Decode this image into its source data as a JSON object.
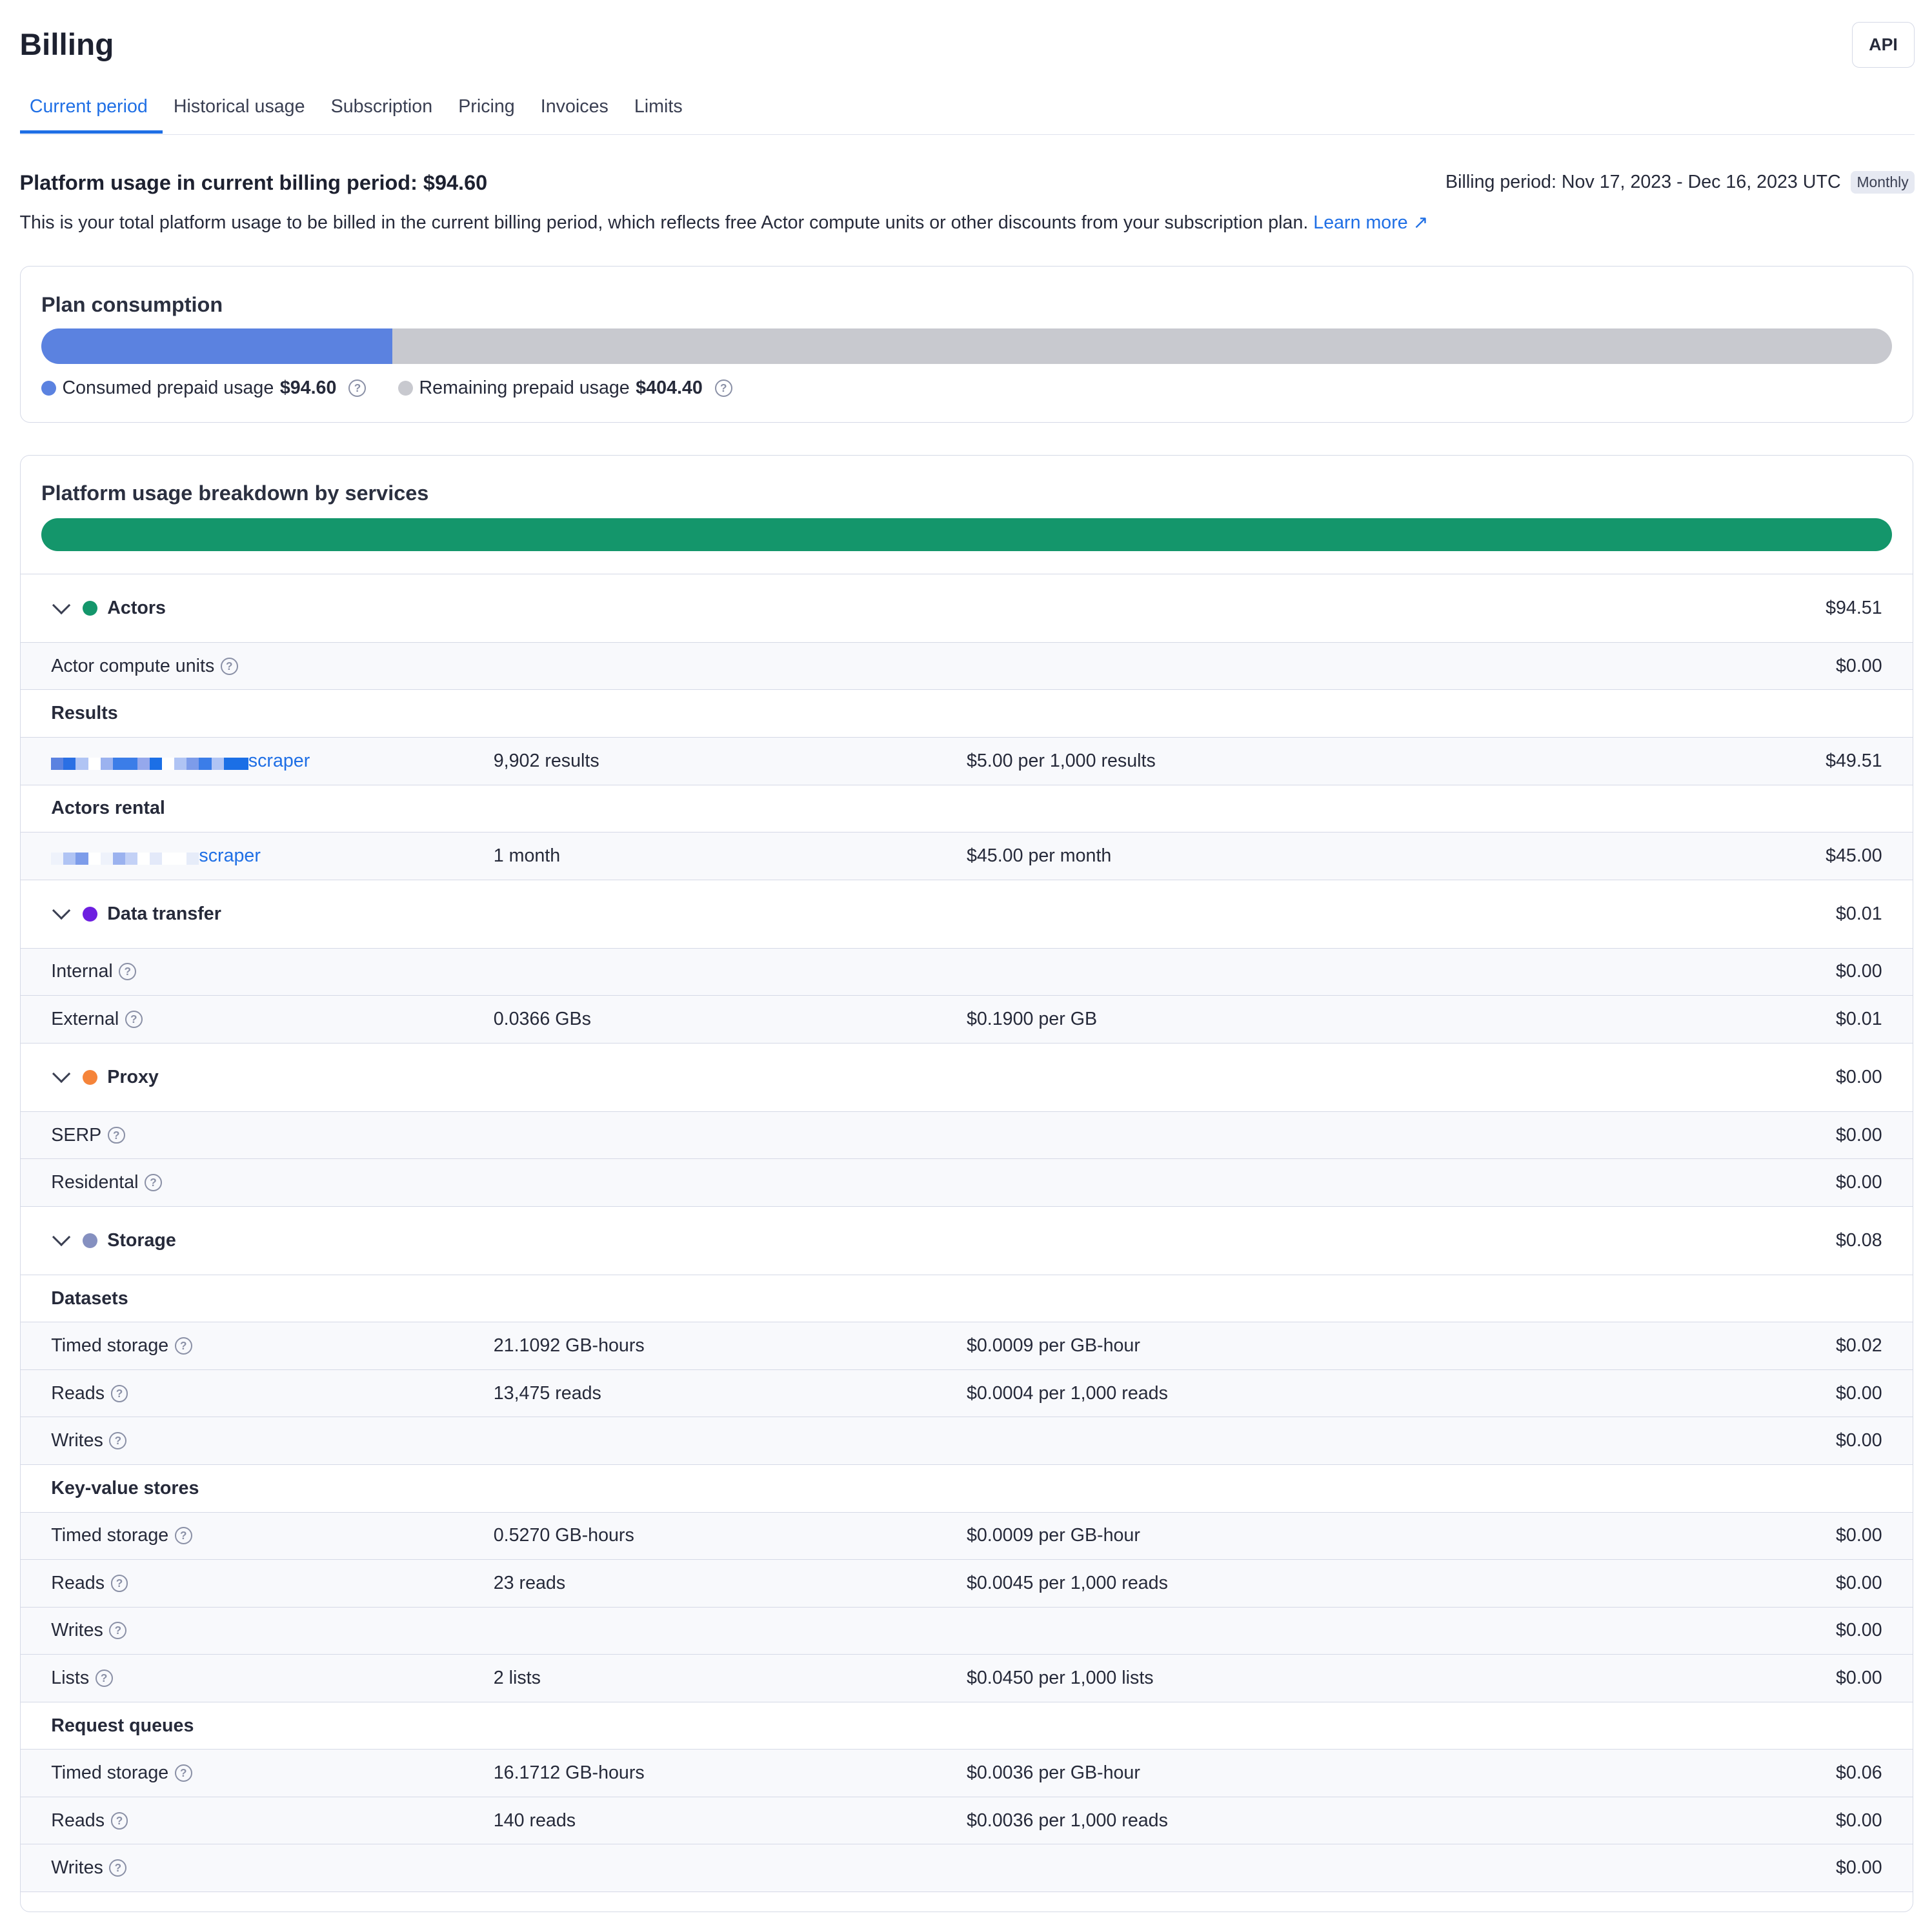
{
  "header": {
    "title": "Billing",
    "api_label": "API"
  },
  "tabs": [
    "Current period",
    "Historical usage",
    "Subscription",
    "Pricing",
    "Invoices",
    "Limits"
  ],
  "summary": {
    "title": "Platform usage in current billing period: $94.60",
    "billing_period": "Billing period: Nov 17, 2023 - Dec 16, 2023 UTC",
    "period_badge": "Monthly",
    "description": "This is your total platform usage to be billed in the current billing period, which reflects free Actor compute units or other discounts from your subscription plan.",
    "learn_more": "Learn more"
  },
  "plan": {
    "title": "Plan consumption",
    "consumed_fraction": 0.1896,
    "consumed_label": "Consumed prepaid usage",
    "consumed_value": "$94.60",
    "remaining_label": "Remaining prepaid usage",
    "remaining_value": "$404.40",
    "colors": {
      "consumed": "#5b82e0",
      "remaining": "#c8c9cf"
    }
  },
  "breakdown": {
    "title": "Platform usage breakdown by services",
    "bar_color": "#14966b",
    "sections": [
      {
        "name": "Actors",
        "amount": "$94.51",
        "color": "#14966b",
        "rows": [
          {
            "type": "item",
            "label": "Actor compute units",
            "help": true,
            "amount": "$0.00"
          },
          {
            "type": "grp",
            "label": "Results"
          },
          {
            "type": "item",
            "label": "scraper",
            "link": true,
            "blur": "a",
            "qty": "9,902 results",
            "price": "$5.00 per 1,000 results",
            "amount": "$49.51"
          },
          {
            "type": "grp",
            "label": "Actors rental"
          },
          {
            "type": "item",
            "label": "scraper",
            "link": true,
            "blur": "b",
            "qty": "1 month",
            "price": "$45.00 per month",
            "amount": "$45.00"
          }
        ]
      },
      {
        "name": "Data transfer",
        "amount": "$0.01",
        "color": "#6d1fe0",
        "rows": [
          {
            "type": "item",
            "label": "Internal",
            "help": true,
            "amount": "$0.00"
          },
          {
            "type": "item",
            "label": "External",
            "help": true,
            "qty": "0.0366 GBs",
            "price": "$0.1900 per GB",
            "amount": "$0.01"
          }
        ]
      },
      {
        "name": "Proxy",
        "amount": "$0.00",
        "color": "#f5843a",
        "rows": [
          {
            "type": "item",
            "label": "SERP",
            "help": true,
            "amount": "$0.00"
          },
          {
            "type": "item",
            "label": "Residental",
            "help": true,
            "amount": "$0.00"
          }
        ]
      },
      {
        "name": "Storage",
        "amount": "$0.08",
        "color": "#8590c0",
        "rows": [
          {
            "type": "grp",
            "label": "Datasets"
          },
          {
            "type": "item",
            "label": "Timed storage",
            "help": true,
            "qty": "21.1092 GB-hours",
            "price": "$0.0009 per GB-hour",
            "amount": "$0.02"
          },
          {
            "type": "item",
            "label": "Reads",
            "help": true,
            "qty": "13,475 reads",
            "price": "$0.0004 per 1,000 reads",
            "amount": "$0.00"
          },
          {
            "type": "item",
            "label": "Writes",
            "help": true,
            "amount": "$0.00"
          },
          {
            "type": "grp",
            "label": "Key-value stores"
          },
          {
            "type": "item",
            "label": "Timed storage",
            "help": true,
            "qty": "0.5270 GB-hours",
            "price": "$0.0009 per GB-hour",
            "amount": "$0.00"
          },
          {
            "type": "item",
            "label": "Reads",
            "help": true,
            "qty": "23 reads",
            "price": "$0.0045 per 1,000 reads",
            "amount": "$0.00"
          },
          {
            "type": "item",
            "label": "Writes",
            "help": true,
            "amount": "$0.00"
          },
          {
            "type": "item",
            "label": "Lists",
            "help": true,
            "qty": "2 lists",
            "price": "$0.0450 per 1,000 lists",
            "amount": "$0.00"
          },
          {
            "type": "grp",
            "label": "Request queues"
          },
          {
            "type": "item",
            "label": "Timed storage",
            "help": true,
            "qty": "16.1712 GB-hours",
            "price": "$0.0036 per GB-hour",
            "amount": "$0.06"
          },
          {
            "type": "item",
            "label": "Reads",
            "help": true,
            "qty": "140 reads",
            "price": "$0.0036 per 1,000 reads",
            "amount": "$0.00"
          },
          {
            "type": "item",
            "label": "Writes",
            "help": true,
            "amount": "$0.00"
          }
        ]
      }
    ]
  }
}
